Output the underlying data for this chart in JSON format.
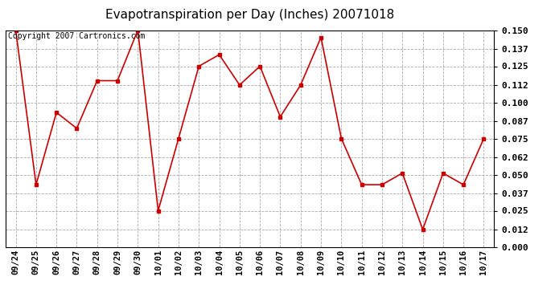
{
  "title": "Evapotranspiration per Day (Inches) 20071018",
  "copyright_text": "Copyright 2007 Cartronics.com",
  "dates": [
    "09/24",
    "09/25",
    "09/26",
    "09/27",
    "09/28",
    "09/29",
    "09/30",
    "10/01",
    "10/02",
    "10/03",
    "10/04",
    "10/05",
    "10/06",
    "10/07",
    "10/08",
    "10/09",
    "10/10",
    "10/11",
    "10/12",
    "10/13",
    "10/14",
    "10/15",
    "10/16",
    "10/17"
  ],
  "values": [
    0.15,
    0.043,
    0.093,
    0.082,
    0.115,
    0.115,
    0.15,
    0.025,
    0.075,
    0.125,
    0.133,
    0.112,
    0.125,
    0.09,
    0.112,
    0.145,
    0.075,
    0.043,
    0.043,
    0.051,
    0.012,
    0.051,
    0.043,
    0.075
  ],
  "line_color": "#cc0000",
  "marker": "s",
  "marker_size": 3.5,
  "ylim": [
    0.0,
    0.15
  ],
  "yticks": [
    0.0,
    0.012,
    0.025,
    0.037,
    0.05,
    0.062,
    0.075,
    0.087,
    0.1,
    0.112,
    0.125,
    0.137,
    0.15
  ],
  "grid_color": "#aaaaaa",
  "bg_color": "#ffffff",
  "title_fontsize": 11,
  "copyright_fontsize": 7
}
